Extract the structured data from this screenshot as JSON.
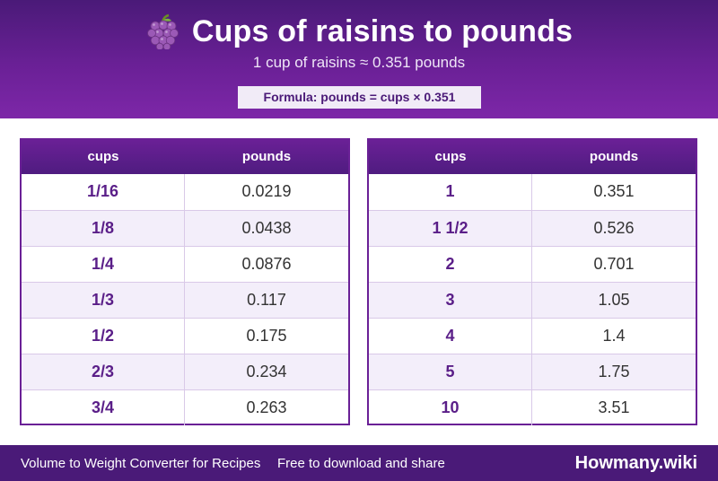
{
  "header": {
    "icon": "grapes-icon",
    "title": "Cups of raisins to pounds",
    "subtitle": "1 cup of raisins ≈ 0.351 pounds",
    "formula": "Formula: pounds = cups × 0.351"
  },
  "tables": [
    {
      "columns": [
        "cups",
        "pounds"
      ],
      "rows": [
        {
          "cups": "1/16",
          "pounds": "0.0219"
        },
        {
          "cups": "1/8",
          "pounds": "0.0438"
        },
        {
          "cups": "1/4",
          "pounds": "0.0876"
        },
        {
          "cups": "1/3",
          "pounds": "0.117"
        },
        {
          "cups": "1/2",
          "pounds": "0.175"
        },
        {
          "cups": "2/3",
          "pounds": "0.234"
        },
        {
          "cups": "3/4",
          "pounds": "0.263"
        }
      ]
    },
    {
      "columns": [
        "cups",
        "pounds"
      ],
      "rows": [
        {
          "cups": "1",
          "pounds": "0.351"
        },
        {
          "cups": "1 1/2",
          "pounds": "0.526"
        },
        {
          "cups": "2",
          "pounds": "0.701"
        },
        {
          "cups": "3",
          "pounds": "1.05"
        },
        {
          "cups": "4",
          "pounds": "1.4"
        },
        {
          "cups": "5",
          "pounds": "1.75"
        },
        {
          "cups": "10",
          "pounds": "3.51"
        }
      ]
    }
  ],
  "footer": {
    "app_name": "Volume to Weight Converter for Recipes",
    "note": "Free to download and share",
    "brand": "Howmany.wiki"
  },
  "colors": {
    "primary": "#6a2096",
    "dark": "#4a1a78",
    "row_alt": "#f3eefa"
  }
}
